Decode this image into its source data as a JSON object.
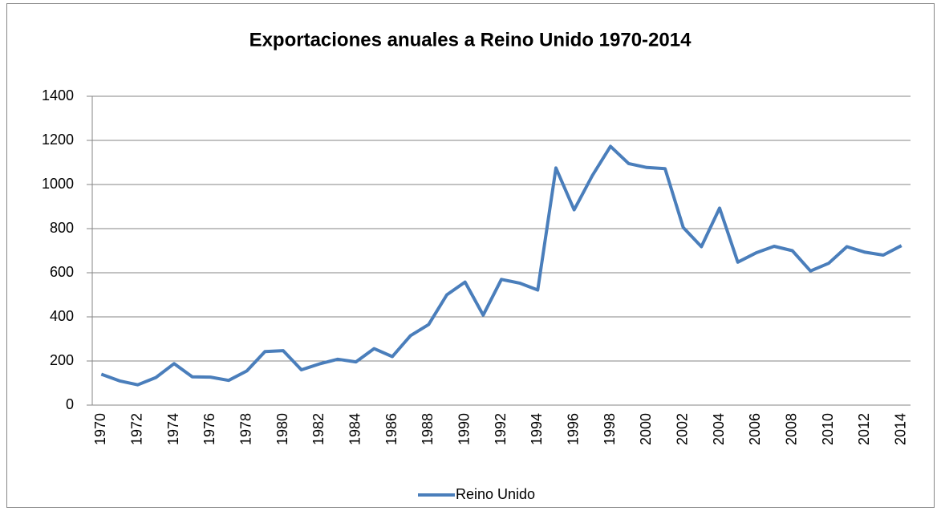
{
  "chart_data": {
    "type": "line",
    "title": "Exportaciones anuales a Reino Unido  1970-2014",
    "categories": [
      "1970",
      null,
      "1972",
      null,
      "1974",
      null,
      "1976",
      null,
      "1978",
      null,
      "1980",
      null,
      "1982",
      null,
      "1984",
      null,
      "1986",
      null,
      "1988",
      null,
      "1990",
      null,
      "1992",
      null,
      "1994",
      null,
      "1996",
      null,
      "1998",
      null,
      "2000",
      null,
      "2002",
      null,
      "2004",
      null,
      "2006",
      null,
      "2008",
      null,
      "2010",
      null,
      "2012",
      null,
      "2014"
    ],
    "series": [
      {
        "name": "Reino Unido",
        "color": "#4a7ebb",
        "values": [
          140,
          110,
          92,
          125,
          188,
          128,
          127,
          112,
          155,
          243,
          247,
          160,
          187,
          208,
          196,
          256,
          220,
          315,
          365,
          500,
          558,
          408,
          570,
          553,
          522,
          1075,
          885,
          1040,
          1173,
          1095,
          1077,
          1072,
          805,
          718,
          893,
          648,
          690,
          720,
          700,
          608,
          643,
          718,
          693,
          680,
          723
        ]
      }
    ],
    "ylim": [
      0,
      1400
    ],
    "yticks": [
      0,
      200,
      400,
      600,
      800,
      1000,
      1200,
      1400
    ],
    "grid": true,
    "legend": "bottom"
  }
}
